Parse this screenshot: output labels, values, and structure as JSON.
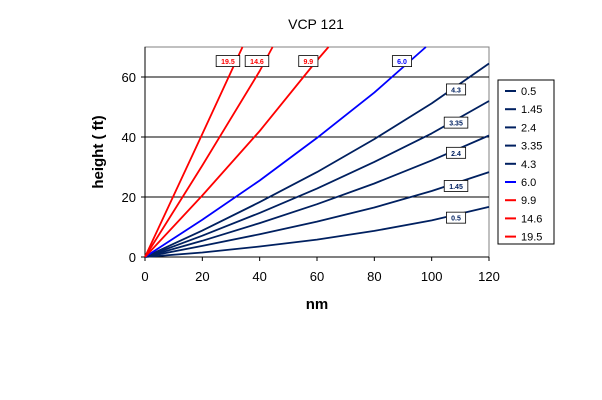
{
  "chart_data": {
    "type": "line",
    "title": "VCP 121",
    "xlabel": "nm",
    "ylabel": "height ( ft)",
    "xlim": [
      0,
      120
    ],
    "ylim": [
      0,
      70
    ],
    "x_ticks": [
      "0",
      "20",
      "40",
      "60",
      "80",
      "100",
      "120"
    ],
    "y_ticks": [
      "0",
      "20",
      "40",
      "60"
    ],
    "grid": "horizontal",
    "legend_position": "right",
    "series": [
      {
        "name": "0.5",
        "color": "#002060",
        "label": "0.5",
        "points": [
          [
            0,
            0
          ],
          [
            20,
            1.5
          ],
          [
            40,
            3.5
          ],
          [
            60,
            5.8
          ],
          [
            80,
            8.7
          ],
          [
            100,
            12.2
          ],
          [
            120,
            16.7
          ]
        ]
      },
      {
        "name": "1.45",
        "color": "#002060",
        "label": "1.45",
        "points": [
          [
            0,
            0
          ],
          [
            20,
            3.7
          ],
          [
            40,
            7.6
          ],
          [
            60,
            11.8
          ],
          [
            80,
            16.5
          ],
          [
            100,
            22.0
          ],
          [
            120,
            28.3
          ]
        ]
      },
      {
        "name": "2.4",
        "color": "#002060",
        "label": "2.4",
        "points": [
          [
            0,
            0
          ],
          [
            20,
            5.4
          ],
          [
            40,
            11.3
          ],
          [
            60,
            17.6
          ],
          [
            80,
            24.5
          ],
          [
            100,
            32.2
          ],
          [
            120,
            40.5
          ]
        ]
      },
      {
        "name": "3.35",
        "color": "#002060",
        "label": "3.35",
        "points": [
          [
            0,
            0
          ],
          [
            20,
            7.1
          ],
          [
            40,
            14.7
          ],
          [
            60,
            22.8
          ],
          [
            80,
            31.7
          ],
          [
            100,
            41.2
          ],
          [
            120,
            52.0
          ]
        ]
      },
      {
        "name": "4.3",
        "color": "#002060",
        "label": "4.3",
        "points": [
          [
            0,
            0
          ],
          [
            20,
            8.8
          ],
          [
            40,
            18.3
          ],
          [
            60,
            28.3
          ],
          [
            80,
            39.3
          ],
          [
            100,
            51.2
          ],
          [
            120,
            64.5
          ]
        ]
      },
      {
        "name": "6.0",
        "color": "#0000ff",
        "label": "6.0",
        "points": [
          [
            0,
            0
          ],
          [
            20,
            12.4
          ],
          [
            40,
            25.5
          ],
          [
            60,
            39.7
          ],
          [
            80,
            54.8
          ],
          [
            98,
            70
          ]
        ]
      },
      {
        "name": "9.9",
        "color": "#ff0000",
        "label": "9.9",
        "points": [
          [
            0,
            0
          ],
          [
            20,
            20.5
          ],
          [
            40,
            42
          ],
          [
            59.5,
            65
          ],
          [
            64,
            70
          ]
        ]
      },
      {
        "name": "14.6",
        "color": "#ff0000",
        "label": "14.6",
        "points": [
          [
            0,
            0
          ],
          [
            20,
            30.5
          ],
          [
            40,
            62
          ],
          [
            44.5,
            70
          ]
        ]
      },
      {
        "name": "19.5",
        "color": "#ff0000",
        "label": "19.5",
        "points": [
          [
            0,
            0
          ],
          [
            20,
            41
          ],
          [
            34,
            70
          ]
        ]
      }
    ]
  }
}
